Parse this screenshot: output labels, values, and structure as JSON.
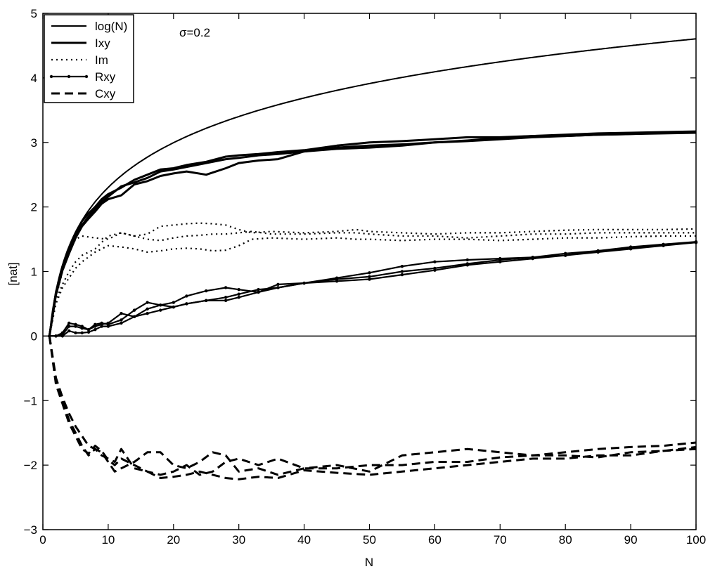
{
  "chart_data": {
    "type": "line",
    "xlabel": "N",
    "ylabel": "[nat]",
    "xlim": [
      0,
      100
    ],
    "ylim": [
      -3,
      5
    ],
    "x_ticks": [
      0,
      10,
      20,
      30,
      40,
      50,
      60,
      70,
      80,
      90,
      100
    ],
    "y_ticks": [
      -3,
      -2,
      -1,
      0,
      1,
      2,
      3,
      4,
      5
    ],
    "grid": false,
    "legend_position": "top-left",
    "annotation": "σ=0.2",
    "zero_line": 0,
    "legend": [
      {
        "name": "log(N)",
        "style": "solid-thin"
      },
      {
        "name": "Ixy",
        "style": "solid-thick"
      },
      {
        "name": "Im",
        "style": "dotted"
      },
      {
        "name": "Rxy",
        "style": "solid-dots"
      },
      {
        "name": "Cxy",
        "style": "dashed"
      }
    ],
    "series": [
      {
        "group": "log(N)",
        "style": "solid-thin",
        "function": "log",
        "x_range": [
          1,
          100
        ]
      },
      {
        "group": "Ixy",
        "style": "solid-thick",
        "x": [
          1,
          2,
          3,
          4,
          5,
          6,
          7,
          8,
          9,
          10,
          12,
          14,
          16,
          18,
          20,
          22,
          25,
          28,
          30,
          33,
          36,
          40,
          45,
          50,
          55,
          60,
          65,
          70,
          75,
          80,
          85,
          90,
          95,
          100
        ],
        "y": [
          0,
          0.66,
          1.05,
          1.3,
          1.55,
          1.72,
          1.85,
          1.97,
          2.08,
          2.16,
          2.32,
          2.38,
          2.45,
          2.55,
          2.58,
          2.62,
          2.68,
          2.74,
          2.76,
          2.8,
          2.82,
          2.86,
          2.92,
          2.95,
          2.97,
          3.0,
          3.03,
          3.07,
          3.1,
          3.1,
          3.12,
          3.13,
          3.14,
          3.15
        ]
      },
      {
        "group": "Ixy",
        "style": "solid-thick",
        "x": [
          1,
          2,
          3,
          4,
          5,
          6,
          7,
          8,
          9,
          10,
          12,
          14,
          16,
          18,
          20,
          22,
          25,
          28,
          30,
          33,
          36,
          40,
          45,
          50,
          55,
          60,
          65,
          70,
          75,
          80,
          85,
          90,
          95,
          100
        ],
        "y": [
          0,
          0.68,
          1.08,
          1.35,
          1.6,
          1.78,
          1.9,
          2.0,
          2.12,
          2.2,
          2.3,
          2.42,
          2.5,
          2.58,
          2.6,
          2.65,
          2.7,
          2.78,
          2.8,
          2.82,
          2.85,
          2.88,
          2.95,
          3.0,
          3.02,
          3.05,
          3.08,
          3.08,
          3.1,
          3.12,
          3.14,
          3.15,
          3.16,
          3.17
        ]
      },
      {
        "group": "Ixy",
        "style": "solid-thick",
        "x": [
          1,
          2,
          3,
          4,
          5,
          6,
          7,
          8,
          9,
          10,
          12,
          14,
          16,
          18,
          20,
          22,
          25,
          28,
          30,
          33,
          36,
          40,
          45,
          50,
          55,
          60,
          65,
          70,
          75,
          80,
          85,
          90,
          95,
          100
        ],
        "y": [
          0,
          0.64,
          1.02,
          1.28,
          1.52,
          1.7,
          1.82,
          1.93,
          2.05,
          2.12,
          2.18,
          2.35,
          2.4,
          2.48,
          2.52,
          2.55,
          2.5,
          2.6,
          2.68,
          2.72,
          2.74,
          2.86,
          2.9,
          2.92,
          2.95,
          3.0,
          3.02,
          3.05,
          3.08,
          3.1,
          3.12,
          3.13,
          3.15,
          3.16
        ]
      },
      {
        "group": "Im",
        "style": "dotted",
        "x": [
          1,
          2,
          3,
          4,
          5,
          6,
          8,
          10,
          12,
          14,
          16,
          18,
          20,
          22,
          24,
          26,
          28,
          30,
          32,
          35,
          40,
          45,
          48,
          50,
          55,
          60,
          65,
          70,
          75,
          80,
          85,
          90,
          95,
          100
        ],
        "y": [
          0,
          0.6,
          1.0,
          1.3,
          1.5,
          1.55,
          1.52,
          1.5,
          1.6,
          1.55,
          1.58,
          1.7,
          1.72,
          1.74,
          1.75,
          1.74,
          1.72,
          1.65,
          1.6,
          1.62,
          1.6,
          1.62,
          1.65,
          1.62,
          1.6,
          1.58,
          1.6,
          1.6,
          1.62,
          1.64,
          1.65,
          1.65,
          1.65,
          1.66
        ]
      },
      {
        "group": "Im",
        "style": "dotted",
        "x": [
          1,
          2,
          3,
          4,
          5,
          6,
          8,
          10,
          12,
          14,
          16,
          18,
          20,
          22,
          24,
          26,
          28,
          30,
          32,
          35,
          40,
          45,
          48,
          50,
          55,
          60,
          65,
          70,
          75,
          80,
          85,
          90,
          95,
          100
        ],
        "y": [
          0,
          0.55,
          0.8,
          1.0,
          1.15,
          1.25,
          1.35,
          1.55,
          1.6,
          1.55,
          1.5,
          1.48,
          1.52,
          1.55,
          1.56,
          1.58,
          1.58,
          1.6,
          1.62,
          1.58,
          1.58,
          1.6,
          1.6,
          1.58,
          1.55,
          1.55,
          1.52,
          1.55,
          1.58,
          1.58,
          1.6,
          1.6,
          1.6,
          1.6
        ]
      },
      {
        "group": "Im",
        "style": "dotted",
        "x": [
          1,
          2,
          3,
          4,
          5,
          6,
          8,
          10,
          12,
          14,
          16,
          18,
          20,
          22,
          24,
          26,
          28,
          30,
          32,
          35,
          40,
          45,
          48,
          50,
          55,
          60,
          65,
          70,
          75,
          80,
          85,
          90,
          95,
          100
        ],
        "y": [
          0,
          0.5,
          0.75,
          0.9,
          1.05,
          1.15,
          1.3,
          1.4,
          1.38,
          1.35,
          1.3,
          1.32,
          1.35,
          1.36,
          1.35,
          1.32,
          1.33,
          1.4,
          1.5,
          1.52,
          1.5,
          1.52,
          1.5,
          1.5,
          1.48,
          1.5,
          1.5,
          1.48,
          1.5,
          1.52,
          1.52,
          1.54,
          1.55,
          1.55
        ]
      },
      {
        "group": "Rxy",
        "style": "solid-dots",
        "x": [
          1,
          2,
          3,
          4,
          5,
          6,
          7,
          8,
          9,
          10,
          12,
          14,
          16,
          18,
          20,
          22,
          25,
          28,
          30,
          33,
          36,
          40,
          45,
          50,
          55,
          60,
          65,
          70,
          75,
          80,
          85,
          90,
          95,
          100
        ],
        "y": [
          0,
          0.0,
          0.02,
          0.15,
          0.15,
          0.12,
          0.1,
          0.15,
          0.18,
          0.2,
          0.35,
          0.3,
          0.42,
          0.48,
          0.45,
          0.5,
          0.55,
          0.55,
          0.6,
          0.68,
          0.75,
          0.82,
          0.88,
          0.92,
          1.0,
          1.05,
          1.12,
          1.18,
          1.22,
          1.25,
          1.3,
          1.35,
          1.4,
          1.45
        ]
      },
      {
        "group": "Rxy",
        "style": "solid-dots",
        "x": [
          1,
          2,
          3,
          4,
          5,
          6,
          7,
          8,
          9,
          10,
          12,
          14,
          16,
          18,
          20,
          22,
          25,
          28,
          30,
          33,
          36,
          40,
          45,
          50,
          55,
          60,
          65,
          70,
          75,
          80,
          85,
          90,
          95,
          100
        ],
        "y": [
          0,
          0.0,
          0.05,
          0.2,
          0.18,
          0.15,
          0.1,
          0.18,
          0.2,
          0.18,
          0.25,
          0.4,
          0.52,
          0.48,
          0.52,
          0.62,
          0.7,
          0.75,
          0.72,
          0.68,
          0.8,
          0.82,
          0.85,
          0.88,
          0.95,
          1.02,
          1.1,
          1.15,
          1.2,
          1.25,
          1.32,
          1.36,
          1.42,
          1.46
        ]
      },
      {
        "group": "Rxy",
        "style": "solid-dots",
        "x": [
          1,
          2,
          3,
          4,
          5,
          6,
          7,
          8,
          9,
          10,
          12,
          14,
          16,
          18,
          20,
          22,
          25,
          28,
          30,
          33,
          36,
          40,
          45,
          50,
          55,
          60,
          65,
          70,
          75,
          80,
          85,
          90,
          95,
          100
        ],
        "y": [
          0,
          0.0,
          0.0,
          0.08,
          0.05,
          0.05,
          0.06,
          0.1,
          0.15,
          0.15,
          0.2,
          0.3,
          0.35,
          0.4,
          0.45,
          0.5,
          0.55,
          0.6,
          0.65,
          0.72,
          0.75,
          0.82,
          0.9,
          0.98,
          1.08,
          1.15,
          1.18,
          1.2,
          1.22,
          1.28,
          1.32,
          1.38,
          1.42,
          1.45
        ]
      },
      {
        "group": "Cxy",
        "style": "dashed",
        "x": [
          1,
          2,
          3,
          4,
          5,
          6,
          7,
          8,
          9,
          10,
          11,
          12,
          14,
          16,
          18,
          20,
          22,
          24,
          26,
          28,
          30,
          33,
          36,
          40,
          45,
          50,
          55,
          60,
          65,
          70,
          75,
          80,
          85,
          90,
          95,
          100
        ],
        "y": [
          0,
          -0.7,
          -1.0,
          -1.3,
          -1.5,
          -1.7,
          -1.85,
          -1.75,
          -1.8,
          -1.95,
          -2.1,
          -2.05,
          -1.95,
          -1.8,
          -1.8,
          -2.0,
          -2.05,
          -1.95,
          -1.8,
          -1.85,
          -2.1,
          -2.05,
          -2.15,
          -2.05,
          -2.0,
          -2.1,
          -1.85,
          -1.8,
          -1.75,
          -1.8,
          -1.85,
          -1.8,
          -1.75,
          -1.72,
          -1.7,
          -1.65
        ]
      },
      {
        "group": "Cxy",
        "style": "dashed",
        "x": [
          1,
          2,
          3,
          4,
          5,
          6,
          7,
          8,
          9,
          10,
          11,
          12,
          14,
          16,
          18,
          20,
          22,
          24,
          26,
          28,
          30,
          33,
          36,
          40,
          45,
          50,
          55,
          60,
          65,
          70,
          75,
          80,
          85,
          90,
          95,
          100
        ],
        "y": [
          0,
          -0.75,
          -1.05,
          -1.35,
          -1.55,
          -1.75,
          -1.82,
          -1.7,
          -1.78,
          -1.92,
          -2.0,
          -1.9,
          -2.0,
          -2.1,
          -2.15,
          -2.1,
          -2.0,
          -2.15,
          -2.1,
          -1.95,
          -1.9,
          -2.0,
          -1.9,
          -2.05,
          -2.05,
          -2.0,
          -2.0,
          -1.95,
          -1.95,
          -1.88,
          -1.85,
          -1.85,
          -1.88,
          -1.8,
          -1.78,
          -1.72
        ]
      },
      {
        "group": "Cxy",
        "style": "dashed",
        "x": [
          1,
          2,
          3,
          4,
          5,
          6,
          7,
          8,
          9,
          10,
          11,
          12,
          14,
          16,
          18,
          20,
          22,
          24,
          26,
          28,
          30,
          33,
          36,
          40,
          45,
          50,
          55,
          60,
          65,
          70,
          75,
          80,
          85,
          90,
          95,
          100
        ],
        "y": [
          0,
          -0.65,
          -0.95,
          -1.2,
          -1.4,
          -1.55,
          -1.7,
          -1.75,
          -1.85,
          -1.9,
          -1.95,
          -1.75,
          -2.05,
          -2.1,
          -2.2,
          -2.18,
          -2.15,
          -2.1,
          -2.15,
          -2.2,
          -2.22,
          -2.18,
          -2.2,
          -2.08,
          -2.12,
          -2.15,
          -2.1,
          -2.05,
          -2.0,
          -1.95,
          -1.9,
          -1.9,
          -1.85,
          -1.85,
          -1.78,
          -1.75
        ]
      }
    ]
  }
}
